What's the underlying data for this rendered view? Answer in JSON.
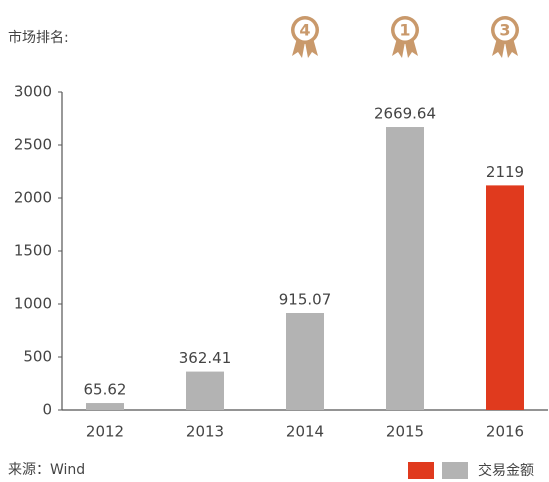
{
  "chart_data": {
    "type": "bar",
    "rank_title": "市场排名:",
    "categories": [
      "2012",
      "2013",
      "2014",
      "2015",
      "2016"
    ],
    "ranks": [
      null,
      null,
      "4",
      "1",
      "3"
    ],
    "series": [
      {
        "name": "交易金额",
        "colors": [
          "#b3b3b3",
          "#b3b3b3",
          "#b3b3b3",
          "#b3b3b3",
          "#e03a1e"
        ],
        "values": [
          65.62,
          362.41,
          915.07,
          2669.64,
          2119
        ]
      }
    ],
    "ylim": [
      0,
      3000
    ],
    "yticks": [
      0,
      500,
      1000,
      1500,
      2000,
      2500,
      3000
    ],
    "source": "来源：Wind",
    "medal_color": "#c9996b"
  }
}
